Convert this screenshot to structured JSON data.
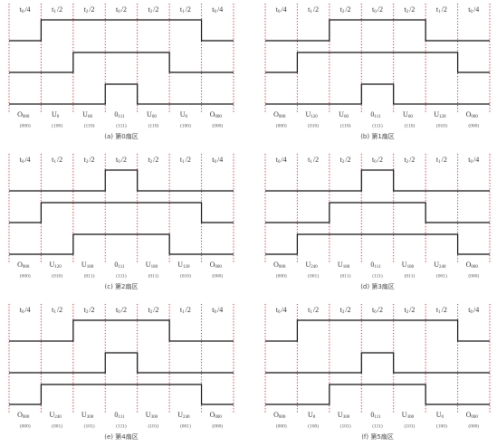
{
  "panels": [
    {
      "headers": [
        {
          "base": "t",
          "sub": "0",
          "tail": "/4"
        },
        {
          "base": "t",
          "sub": "1",
          "tail": "/2"
        },
        {
          "base": "t",
          "sub": "2",
          "tail": "/2"
        },
        {
          "base": "t",
          "sub": "0",
          "tail": "/2"
        },
        {
          "base": "t",
          "sub": "2",
          "tail": "/2"
        },
        {
          "base": "t",
          "sub": "1",
          "tail": "/2"
        },
        {
          "base": "t",
          "sub": "0",
          "tail": "/4"
        }
      ],
      "vectors": [
        {
          "base": "O",
          "sub": "000"
        },
        {
          "base": "U",
          "sub": "0"
        },
        {
          "base": "U",
          "sub": "60"
        },
        {
          "base": "0",
          "sub": "111"
        },
        {
          "base": "U",
          "sub": "60"
        },
        {
          "base": "U",
          "sub": "0"
        },
        {
          "base": "O",
          "sub": "000"
        }
      ],
      "codes": [
        "(000)",
        "(100)",
        "(110)",
        "(111)",
        "(110)",
        "(100)",
        "(000)"
      ],
      "caption": "(a) 第0扇区"
    },
    {
      "headers": [
        {
          "base": "t",
          "sub": "0",
          "tail": "/4"
        },
        {
          "base": "t",
          "sub": "1",
          "tail": "/2"
        },
        {
          "base": "t",
          "sub": "2",
          "tail": "/2"
        },
        {
          "base": "t",
          "sub": "0",
          "tail": "/2"
        },
        {
          "base": "t",
          "sub": "2",
          "tail": "/2"
        },
        {
          "base": "t",
          "sub": "1",
          "tail": "/2"
        },
        {
          "base": "t",
          "sub": "0",
          "tail": "/4"
        }
      ],
      "vectors": [
        {
          "base": "O",
          "sub": "000"
        },
        {
          "base": "U",
          "sub": "120"
        },
        {
          "base": "U",
          "sub": "60"
        },
        {
          "base": "0",
          "sub": "111"
        },
        {
          "base": "U",
          "sub": "60"
        },
        {
          "base": "U",
          "sub": "120"
        },
        {
          "base": "O",
          "sub": "000"
        }
      ],
      "codes": [
        "(000)",
        "(010)",
        "(110)",
        "(111)",
        "(110)",
        "(010)",
        "(000)"
      ],
      "caption": "(b) 第1扇区"
    },
    {
      "headers": [
        {
          "base": "t",
          "sub": "0",
          "tail": "/4"
        },
        {
          "base": "t",
          "sub": "1",
          "tail": "/2"
        },
        {
          "base": "t",
          "sub": "2",
          "tail": "/2"
        },
        {
          "base": "t",
          "sub": "0",
          "tail": "/2"
        },
        {
          "base": "t",
          "sub": "2",
          "tail": "/2"
        },
        {
          "base": "t",
          "sub": "1",
          "tail": "/2"
        },
        {
          "base": "t",
          "sub": "0",
          "tail": "/4"
        }
      ],
      "vectors": [
        {
          "base": "O",
          "sub": "000"
        },
        {
          "base": "U",
          "sub": "120"
        },
        {
          "base": "U",
          "sub": "180"
        },
        {
          "base": "0",
          "sub": "111"
        },
        {
          "base": "U",
          "sub": "180"
        },
        {
          "base": "U",
          "sub": "120"
        },
        {
          "base": "O",
          "sub": "000"
        }
      ],
      "codes": [
        "(000)",
        "(010)",
        "(011)",
        "(111)",
        "(011)",
        "(010)",
        "(000)"
      ],
      "caption": "(c) 第2扇区"
    },
    {
      "headers": [
        {
          "base": "t",
          "sub": "0",
          "tail": "/4"
        },
        {
          "base": "t",
          "sub": "1",
          "tail": "/2"
        },
        {
          "base": "t",
          "sub": "2",
          "tail": "/2"
        },
        {
          "base": "t",
          "sub": "0",
          "tail": "/2"
        },
        {
          "base": "t",
          "sub": "2",
          "tail": "/2"
        },
        {
          "base": "t",
          "sub": "1",
          "tail": "/2"
        },
        {
          "base": "t",
          "sub": "0",
          "tail": "/4"
        }
      ],
      "vectors": [
        {
          "base": "O",
          "sub": "000"
        },
        {
          "base": "U",
          "sub": "240"
        },
        {
          "base": "U",
          "sub": "180"
        },
        {
          "base": "0",
          "sub": "111"
        },
        {
          "base": "U",
          "sub": "180"
        },
        {
          "base": "U",
          "sub": "240"
        },
        {
          "base": "O",
          "sub": "000"
        }
      ],
      "codes": [
        "(000)",
        "(001)",
        "(011)",
        "(111)",
        "(011)",
        "(001)",
        "(000)"
      ],
      "caption": "(d) 第3扇区"
    },
    {
      "headers": [
        {
          "base": "t",
          "sub": "0",
          "tail": "/4"
        },
        {
          "base": "t",
          "sub": "1",
          "tail": "/2"
        },
        {
          "base": "t",
          "sub": "2",
          "tail": "/2"
        },
        {
          "base": "t",
          "sub": "0",
          "tail": "/2"
        },
        {
          "base": "t",
          "sub": "2",
          "tail": "/2"
        },
        {
          "base": "t",
          "sub": "1",
          "tail": "/2"
        },
        {
          "base": "t",
          "sub": "0",
          "tail": "/4"
        }
      ],
      "vectors": [
        {
          "base": "O",
          "sub": "000"
        },
        {
          "base": "U",
          "sub": "240"
        },
        {
          "base": "U",
          "sub": "300"
        },
        {
          "base": "0",
          "sub": "111"
        },
        {
          "base": "U",
          "sub": "300"
        },
        {
          "base": "U",
          "sub": "240"
        },
        {
          "base": "O",
          "sub": "000"
        }
      ],
      "codes": [
        "(000)",
        "(001)",
        "(101)",
        "(111)",
        "(101)",
        "(001)",
        "(000)"
      ],
      "caption": "(e) 第4扇区"
    },
    {
      "headers": [
        {
          "base": "t",
          "sub": "0",
          "tail": "/4"
        },
        {
          "base": "t",
          "sub": "1",
          "tail": "/2"
        },
        {
          "base": "t",
          "sub": "2",
          "tail": "/2"
        },
        {
          "base": "t",
          "sub": "0",
          "tail": "/2"
        },
        {
          "base": "t",
          "sub": "2",
          "tail": "/2"
        },
        {
          "base": "t",
          "sub": "1",
          "tail": "/2"
        },
        {
          "base": "t",
          "sub": "0",
          "tail": "/4"
        }
      ],
      "vectors": [
        {
          "base": "O",
          "sub": "000"
        },
        {
          "base": "U",
          "sub": "0"
        },
        {
          "base": "U",
          "sub": "300"
        },
        {
          "base": "0",
          "sub": "111"
        },
        {
          "base": "U",
          "sub": "300"
        },
        {
          "base": "U",
          "sub": "0"
        },
        {
          "base": "O",
          "sub": "000"
        }
      ],
      "codes": [
        "(000)",
        "(100)",
        "(101)",
        "(111)",
        "(101)",
        "(100)",
        "(000)"
      ],
      "caption": "(f) 第5扇区"
    }
  ]
}
